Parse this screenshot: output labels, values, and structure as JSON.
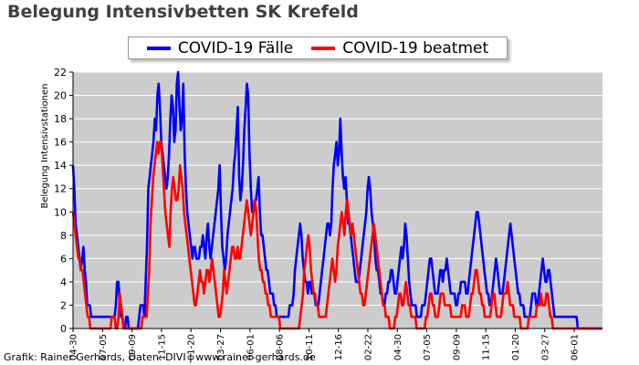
{
  "chart_data": {
    "type": "line",
    "title": "Belegung Intensivbetten SK Krefeld",
    "xlabel": "",
    "ylabel": "Belegung Intensivstationen",
    "ylim": [
      0,
      22
    ],
    "y_ticks": [
      0,
      2,
      4,
      6,
      8,
      10,
      12,
      14,
      16,
      18,
      20,
      22
    ],
    "x_tick_labels": [
      "04-30",
      "07-05",
      "09-09",
      "11-15",
      "01-20",
      "03-27",
      "06-01",
      "08-06",
      "10-11",
      "12-16",
      "02-22",
      "04-30",
      "07-05",
      "09-09",
      "11-15",
      "01-20",
      "03-27",
      "06-01"
    ],
    "grid": "horizontal",
    "background": "#cccccc",
    "legend_position": "top",
    "series": [
      {
        "name": "COVID-19 Fälle",
        "color": "#0000ff",
        "values": [
          14,
          12,
          9,
          8,
          7,
          6,
          5,
          6,
          7,
          5,
          4,
          2,
          2,
          2,
          1,
          1,
          1,
          1,
          1,
          1,
          1,
          1,
          1,
          1,
          1,
          1,
          1,
          1,
          1,
          1,
          1,
          1,
          1,
          2,
          4,
          4,
          2,
          1,
          1,
          0,
          0,
          1,
          1,
          0,
          0,
          0,
          0,
          0,
          0,
          0,
          0,
          1,
          2,
          2,
          2,
          1,
          4,
          7,
          12,
          13,
          14,
          15,
          16,
          18,
          17,
          20,
          21,
          19,
          16,
          15,
          14,
          13,
          12,
          13,
          15,
          18,
          20,
          19,
          16,
          17,
          21,
          22,
          19,
          17,
          18,
          21,
          15,
          12,
          10,
          9,
          8,
          7,
          6,
          7,
          7,
          6,
          6,
          6,
          7,
          7,
          8,
          7,
          6,
          8,
          9,
          7,
          6,
          7,
          8,
          9,
          10,
          11,
          12,
          14,
          10,
          7,
          6,
          5,
          6,
          8,
          9,
          10,
          11,
          12,
          14,
          15,
          17,
          19,
          13,
          11,
          12,
          14,
          17,
          19,
          21,
          20,
          15,
          12,
          10,
          10,
          11,
          11,
          12,
          13,
          10,
          8,
          8,
          7,
          6,
          5,
          5,
          4,
          3,
          3,
          3,
          2,
          2,
          1,
          1,
          1,
          1,
          1,
          1,
          1,
          1,
          1,
          1,
          2,
          2,
          2,
          3,
          5,
          6,
          7,
          8,
          9,
          8,
          6,
          5,
          4,
          4,
          3,
          4,
          4,
          3,
          3,
          3,
          2,
          2,
          2,
          3,
          4,
          5,
          6,
          7,
          8,
          9,
          9,
          8,
          9,
          12,
          14,
          15,
          16,
          14,
          15,
          18,
          15,
          13,
          12,
          13,
          11,
          9,
          9,
          8,
          7,
          6,
          5,
          4,
          4,
          4,
          5,
          6,
          7,
          8,
          9,
          10,
          12,
          13,
          12,
          10,
          9,
          8,
          6,
          5,
          5,
          4,
          3,
          3,
          2,
          2,
          3,
          3,
          4,
          4,
          5,
          5,
          4,
          3,
          3,
          4,
          5,
          6,
          7,
          6,
          7,
          9,
          8,
          6,
          4,
          3,
          2,
          2,
          2,
          2,
          1,
          1,
          1,
          1,
          2,
          2,
          2,
          3,
          4,
          5,
          6,
          6,
          5,
          4,
          3,
          3,
          3,
          4,
          5,
          5,
          4,
          5,
          5,
          6,
          5,
          4,
          3,
          3,
          3,
          3,
          2,
          2,
          3,
          3,
          4,
          4,
          4,
          4,
          3,
          3,
          4,
          5,
          6,
          7,
          8,
          9,
          10,
          10,
          9,
          8,
          7,
          6,
          5,
          4,
          3,
          3,
          2,
          2,
          3,
          4,
          5,
          6,
          5,
          4,
          3,
          3,
          3,
          4,
          5,
          6,
          7,
          8,
          9,
          8,
          7,
          6,
          5,
          4,
          3,
          3,
          2,
          2,
          2,
          1,
          1,
          1,
          1,
          1,
          2,
          3,
          3,
          3,
          2,
          2,
          3,
          4,
          5,
          6,
          5,
          4,
          4,
          5,
          5,
          4,
          3,
          2,
          1,
          1,
          1,
          1,
          1,
          1,
          1,
          1,
          1,
          1,
          1,
          1,
          1,
          1,
          1,
          1,
          1,
          1,
          0,
          0,
          0,
          0,
          0,
          0,
          0,
          0,
          0,
          0,
          0,
          0,
          0,
          0,
          0,
          0,
          0,
          0,
          0,
          0
        ]
      },
      {
        "name": "COVID-19 beatmet",
        "color": "#ff0000",
        "values": [
          10,
          9,
          8,
          7,
          6,
          6,
          5,
          5,
          4,
          3,
          2,
          1,
          1,
          0,
          0,
          0,
          0,
          0,
          0,
          0,
          0,
          0,
          0,
          0,
          0,
          0,
          0,
          0,
          0,
          1,
          1,
          1,
          0,
          0,
          1,
          3,
          2,
          1,
          0,
          0,
          0,
          0,
          0,
          0,
          0,
          0,
          0,
          0,
          0,
          0,
          0,
          0,
          1,
          1,
          1,
          1,
          3,
          5,
          9,
          11,
          13,
          14,
          15,
          16,
          15,
          16,
          16,
          14,
          12,
          10,
          9,
          8,
          7,
          10,
          12,
          13,
          12,
          11,
          11,
          12,
          14,
          13,
          12,
          10,
          9,
          8,
          7,
          6,
          5,
          4,
          3,
          2,
          2,
          3,
          4,
          5,
          4,
          4,
          3,
          4,
          5,
          5,
          4,
          5,
          6,
          5,
          4,
          3,
          2,
          1,
          1,
          2,
          3,
          5,
          4,
          3,
          4,
          5,
          6,
          7,
          7,
          6,
          6,
          7,
          6,
          6,
          7,
          8,
          9,
          10,
          11,
          10,
          9,
          8,
          9,
          10,
          11,
          10,
          8,
          6,
          5,
          5,
          4,
          4,
          3,
          3,
          2,
          2,
          1,
          1,
          1,
          1,
          1,
          1,
          1,
          0,
          0,
          0,
          0,
          0,
          0,
          0,
          0,
          0,
          0,
          0,
          0,
          0,
          0,
          0,
          1,
          2,
          3,
          5,
          6,
          7,
          8,
          7,
          5,
          4,
          3,
          3,
          2,
          2,
          1,
          1,
          1,
          1,
          1,
          1,
          2,
          3,
          4,
          5,
          6,
          5,
          4,
          5,
          7,
          8,
          9,
          10,
          9,
          8,
          10,
          11,
          10,
          9,
          8,
          9,
          8,
          7,
          6,
          5,
          4,
          3,
          3,
          2,
          2,
          3,
          4,
          5,
          6,
          7,
          8,
          9,
          8,
          7,
          6,
          5,
          4,
          3,
          2,
          2,
          1,
          1,
          1,
          0,
          0,
          0,
          0,
          1,
          1,
          2,
          3,
          3,
          2,
          2,
          3,
          4,
          3,
          2,
          2,
          1,
          1,
          1,
          1,
          0,
          0,
          0,
          0,
          0,
          0,
          0,
          1,
          1,
          2,
          3,
          3,
          2,
          2,
          1,
          1,
          1,
          2,
          3,
          3,
          3,
          2,
          2,
          2,
          2,
          2,
          1,
          1,
          1,
          1,
          1,
          1,
          1,
          1,
          2,
          2,
          2,
          1,
          1,
          1,
          2,
          3,
          3,
          4,
          5,
          5,
          4,
          3,
          3,
          2,
          2,
          1,
          1,
          1,
          1,
          1,
          2,
          3,
          3,
          2,
          1,
          1,
          1,
          1,
          2,
          3,
          3,
          3,
          4,
          3,
          2,
          2,
          2,
          1,
          1,
          1,
          1,
          1,
          0,
          0,
          0,
          0,
          0,
          0,
          1,
          1,
          1,
          1,
          1,
          1,
          2,
          2,
          2,
          3,
          2,
          2,
          2,
          3,
          3,
          2,
          1,
          1,
          0,
          0,
          0,
          0,
          0,
          0,
          0,
          0,
          0,
          0,
          0,
          0,
          0,
          0,
          0,
          0,
          0,
          0,
          0,
          0,
          0,
          0,
          0,
          0,
          0,
          0,
          0,
          0,
          0,
          0,
          0,
          0,
          0,
          0,
          0,
          0,
          0,
          0
        ]
      }
    ]
  },
  "footer": {
    "credit": "Grafik: Rainer Gerhards, Daten: DIVI | www.rainer-gerhards.de"
  }
}
